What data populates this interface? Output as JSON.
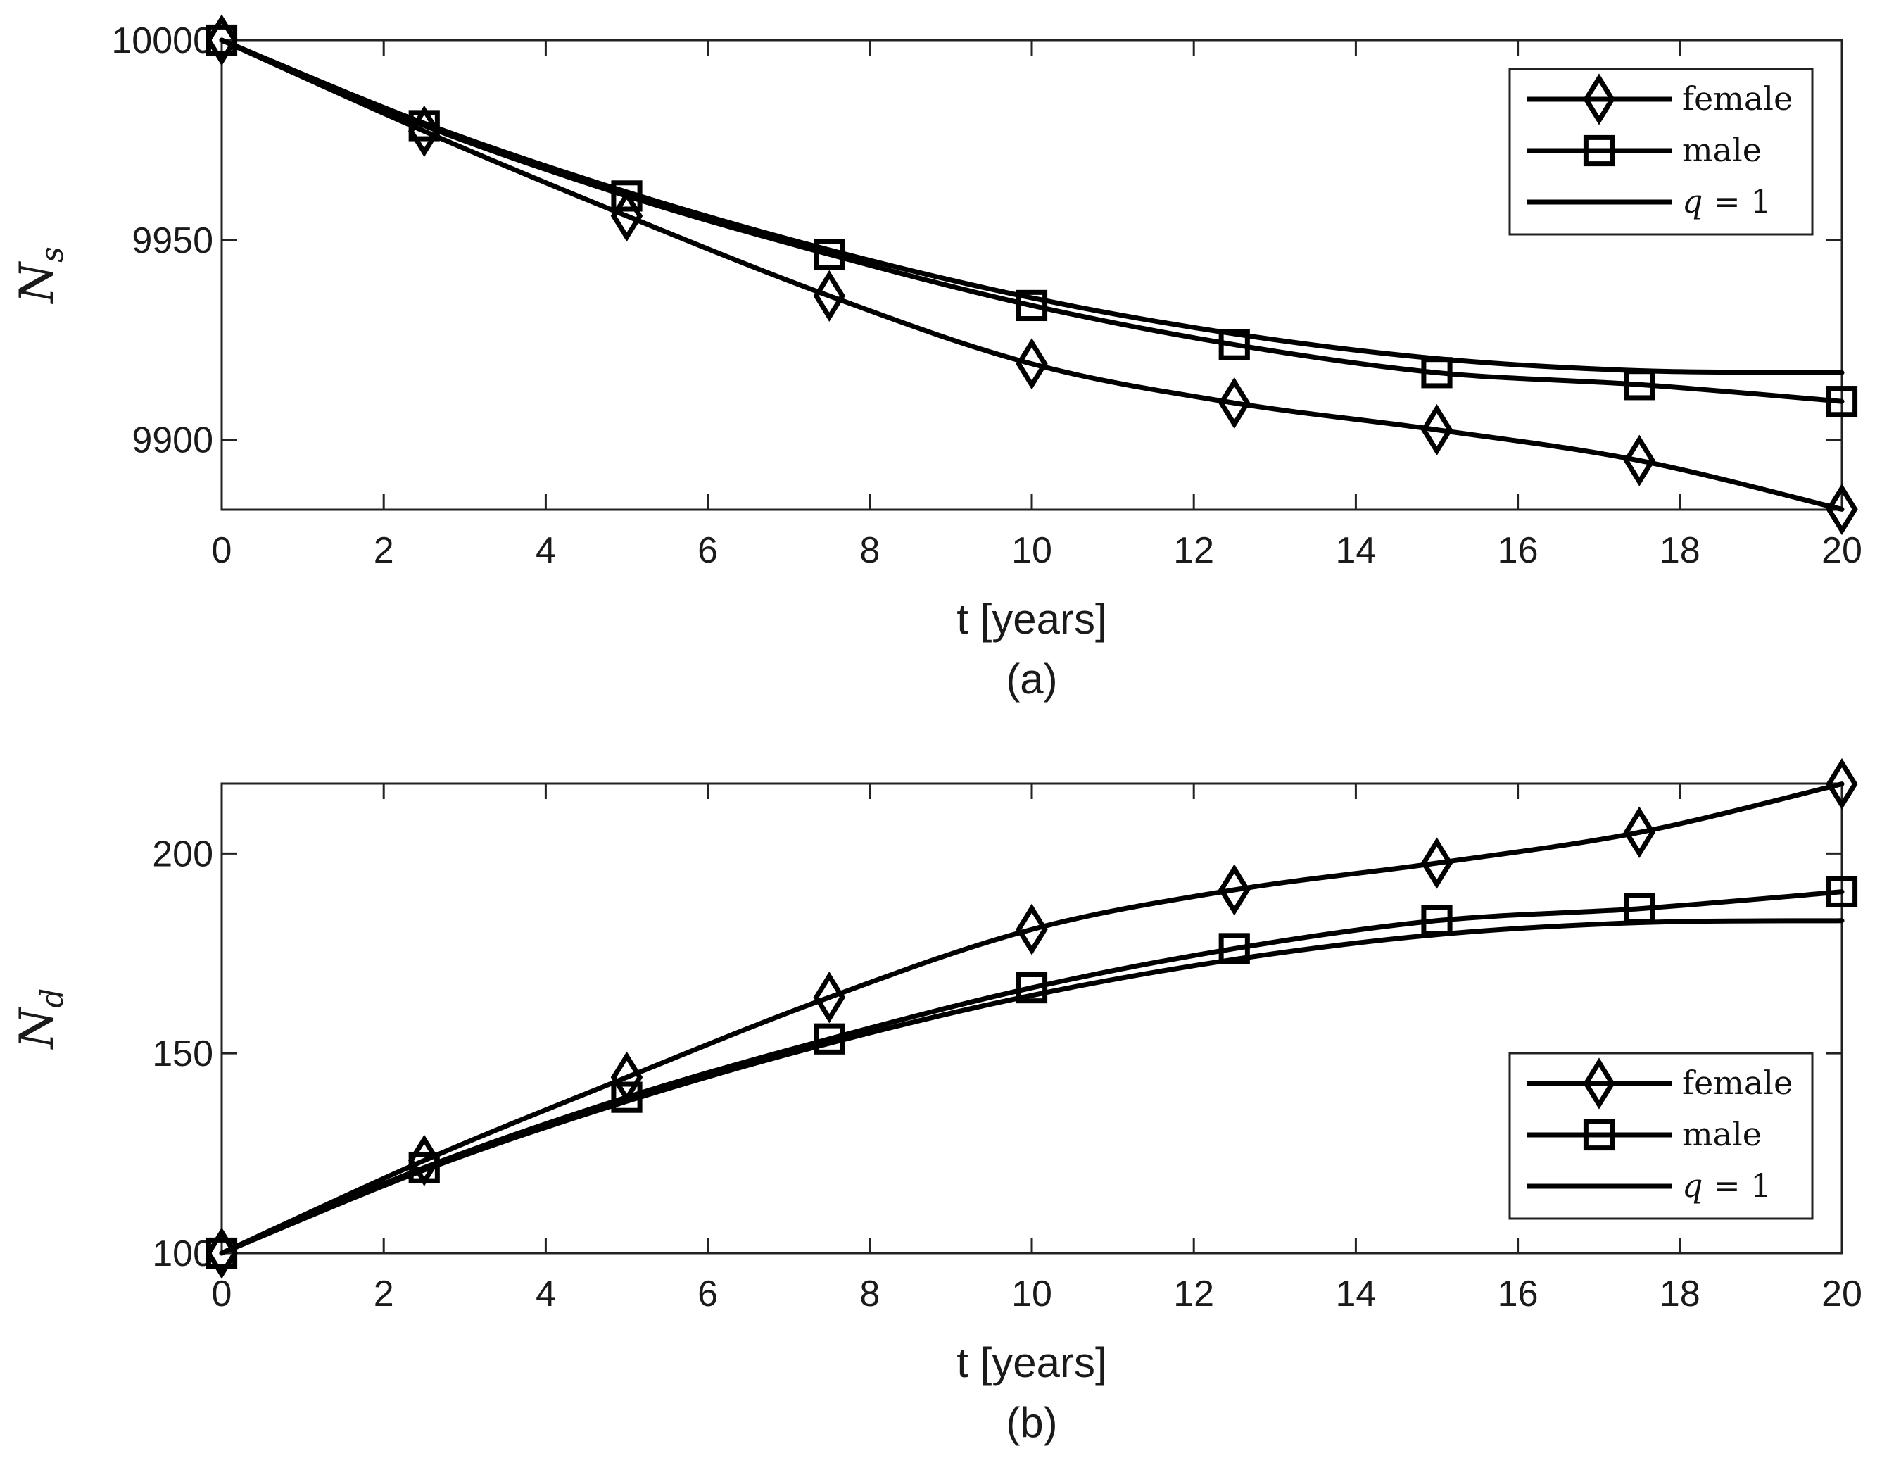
{
  "chart_data": [
    {
      "type": "line",
      "caption": "(a)",
      "xlabel": "t [years]",
      "ylabel": "N",
      "ylabel_sub": "s",
      "xlim": [
        0,
        20
      ],
      "ylim": [
        9882.5,
        10000
      ],
      "xticks": [
        0,
        2,
        4,
        6,
        8,
        10,
        12,
        14,
        16,
        18,
        20
      ],
      "xtick_labels": [
        "0",
        "2",
        "4",
        "6",
        "8",
        "10",
        "12",
        "14",
        "16",
        "18",
        "20"
      ],
      "yticks": [
        9900,
        9950,
        10000
      ],
      "ytick_labels": [
        "9900",
        "9950",
        "10000"
      ],
      "legend_position": "top-right",
      "x": [
        0,
        2.5,
        5,
        7.5,
        10,
        12.5,
        15,
        17.5,
        20
      ],
      "series": [
        {
          "name": "female",
          "marker": "diamond",
          "values": [
            10000,
            9977.2,
            9956.0,
            9936.0,
            9919.0,
            9909.2,
            9902.5,
            9894.8,
            9882.6
          ]
        },
        {
          "name": "male",
          "marker": "square",
          "values": [
            10000,
            9978.6,
            9961.0,
            9946.4,
            9933.6,
            9923.8,
            9916.8,
            9913.8,
            9909.6
          ]
        },
        {
          "name": "q = 1",
          "name_var": "q",
          "name_rest": " = 1",
          "marker": "none",
          "values": [
            10000,
            9979.2,
            9962.0,
            9947.5,
            9935.5,
            9926.5,
            9920.3,
            9917.3,
            9916.8
          ]
        }
      ]
    },
    {
      "type": "line",
      "caption": "(b)",
      "xlabel": "t [years]",
      "ylabel": "N",
      "ylabel_sub": "d",
      "xlim": [
        0,
        20
      ],
      "ylim": [
        100,
        217.5
      ],
      "xticks": [
        0,
        2,
        4,
        6,
        8,
        10,
        12,
        14,
        16,
        18,
        20
      ],
      "xtick_labels": [
        "0",
        "2",
        "4",
        "6",
        "8",
        "10",
        "12",
        "14",
        "16",
        "18",
        "20"
      ],
      "yticks": [
        100,
        150,
        200
      ],
      "ytick_labels": [
        "100",
        "150",
        "200"
      ],
      "legend_position": "bottom-right",
      "x": [
        0,
        2.5,
        5,
        7.5,
        10,
        12.5,
        15,
        17.5,
        20
      ],
      "series": [
        {
          "name": "female",
          "marker": "diamond",
          "values": [
            100,
            123.2,
            144.0,
            164.0,
            181.0,
            190.9,
            197.6,
            205.3,
            217.4
          ]
        },
        {
          "name": "male",
          "marker": "square",
          "values": [
            100,
            121.4,
            139.0,
            153.6,
            166.4,
            176.2,
            183.2,
            186.2,
            190.4
          ]
        },
        {
          "name": "q = 1",
          "name_var": "q",
          "name_rest": " = 1",
          "marker": "none",
          "values": [
            100,
            120.8,
            138.0,
            152.5,
            164.5,
            173.5,
            179.7,
            182.7,
            183.2
          ]
        }
      ]
    }
  ]
}
